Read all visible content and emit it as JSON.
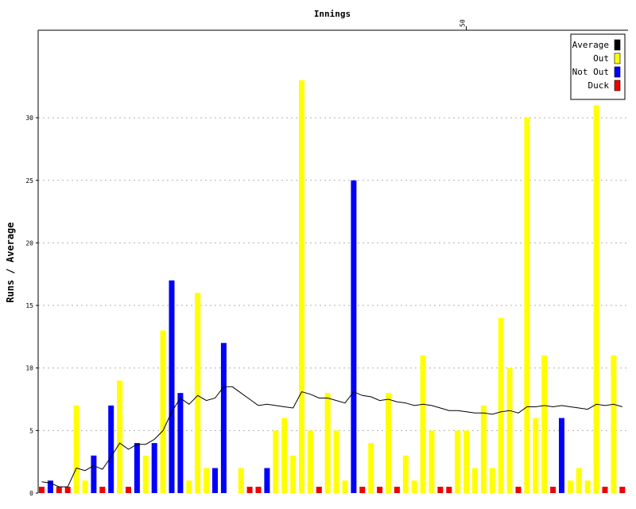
{
  "chart_data": {
    "type": "bar",
    "title": "Innings",
    "ylabel": "Runs / Average",
    "xlabel": "",
    "ylim": [
      0,
      37
    ],
    "yticks": [
      0,
      5,
      10,
      15,
      20,
      25,
      30
    ],
    "top_tick": "50",
    "grid": "horizontal-dotted",
    "legend_position": "top-right",
    "series": [
      {
        "name": "Average",
        "kind": "line",
        "color": "#000000"
      },
      {
        "name": "Out",
        "kind": "bar",
        "color": "#ffff00"
      },
      {
        "name": "Not Out",
        "kind": "bar",
        "color": "#0000ff"
      },
      {
        "name": "Duck",
        "kind": "bar",
        "color": "#ee0000"
      }
    ],
    "innings": [
      {
        "n": 1,
        "runs": 0,
        "type": "Duck"
      },
      {
        "n": 2,
        "runs": 1,
        "type": "Not Out"
      },
      {
        "n": 3,
        "runs": 0,
        "type": "Duck"
      },
      {
        "n": 4,
        "runs": 0,
        "type": "Duck"
      },
      {
        "n": 5,
        "runs": 7,
        "type": "Out"
      },
      {
        "n": 6,
        "runs": 1,
        "type": "Out"
      },
      {
        "n": 7,
        "runs": 3,
        "type": "Not Out"
      },
      {
        "n": 8,
        "runs": 0,
        "type": "Duck"
      },
      {
        "n": 9,
        "runs": 7,
        "type": "Not Out"
      },
      {
        "n": 10,
        "runs": 9,
        "type": "Out"
      },
      {
        "n": 11,
        "runs": 0,
        "type": "Duck"
      },
      {
        "n": 12,
        "runs": 4,
        "type": "Not Out"
      },
      {
        "n": 13,
        "runs": 3,
        "type": "Out"
      },
      {
        "n": 14,
        "runs": 4,
        "type": "Not Out"
      },
      {
        "n": 15,
        "runs": 13,
        "type": "Out"
      },
      {
        "n": 16,
        "runs": 17,
        "type": "Not Out"
      },
      {
        "n": 17,
        "runs": 8,
        "type": "Not Out"
      },
      {
        "n": 18,
        "runs": 1,
        "type": "Out"
      },
      {
        "n": 19,
        "runs": 16,
        "type": "Out"
      },
      {
        "n": 20,
        "runs": 2,
        "type": "Out"
      },
      {
        "n": 21,
        "runs": 2,
        "type": "Not Out"
      },
      {
        "n": 22,
        "runs": 12,
        "type": "Not Out"
      },
      {
        "n": 23,
        "runs": 0,
        "type": "None"
      },
      {
        "n": 24,
        "runs": 2,
        "type": "Out"
      },
      {
        "n": 25,
        "runs": 0,
        "type": "Duck"
      },
      {
        "n": 26,
        "runs": 0,
        "type": "Duck"
      },
      {
        "n": 27,
        "runs": 2,
        "type": "Not Out"
      },
      {
        "n": 28,
        "runs": 5,
        "type": "Out"
      },
      {
        "n": 29,
        "runs": 6,
        "type": "Out"
      },
      {
        "n": 30,
        "runs": 3,
        "type": "Out"
      },
      {
        "n": 31,
        "runs": 33,
        "type": "Out"
      },
      {
        "n": 32,
        "runs": 5,
        "type": "Out"
      },
      {
        "n": 33,
        "runs": 0,
        "type": "Duck"
      },
      {
        "n": 34,
        "runs": 8,
        "type": "Out"
      },
      {
        "n": 35,
        "runs": 5,
        "type": "Out"
      },
      {
        "n": 36,
        "runs": 1,
        "type": "Out"
      },
      {
        "n": 37,
        "runs": 25,
        "type": "Not Out"
      },
      {
        "n": 38,
        "runs": 0,
        "type": "Duck"
      },
      {
        "n": 39,
        "runs": 4,
        "type": "Out"
      },
      {
        "n": 40,
        "runs": 0,
        "type": "Duck"
      },
      {
        "n": 41,
        "runs": 8,
        "type": "Out"
      },
      {
        "n": 42,
        "runs": 0,
        "type": "Duck"
      },
      {
        "n": 43,
        "runs": 3,
        "type": "Out"
      },
      {
        "n": 44,
        "runs": 1,
        "type": "Out"
      },
      {
        "n": 45,
        "runs": 11,
        "type": "Out"
      },
      {
        "n": 46,
        "runs": 5,
        "type": "Out"
      },
      {
        "n": 47,
        "runs": 0,
        "type": "Duck"
      },
      {
        "n": 48,
        "runs": 0,
        "type": "Duck"
      },
      {
        "n": 49,
        "runs": 5,
        "type": "Out"
      },
      {
        "n": 50,
        "runs": 5,
        "type": "Out"
      },
      {
        "n": 51,
        "runs": 2,
        "type": "Out"
      },
      {
        "n": 52,
        "runs": 7,
        "type": "Out"
      },
      {
        "n": 53,
        "runs": 2,
        "type": "Out"
      },
      {
        "n": 54,
        "runs": 14,
        "type": "Out"
      },
      {
        "n": 55,
        "runs": 10,
        "type": "Out"
      },
      {
        "n": 56,
        "runs": 0,
        "type": "Duck"
      },
      {
        "n": 57,
        "runs": 30,
        "type": "Out"
      },
      {
        "n": 58,
        "runs": 6,
        "type": "Out"
      },
      {
        "n": 59,
        "runs": 11,
        "type": "Out"
      },
      {
        "n": 60,
        "runs": 0,
        "type": "Duck"
      },
      {
        "n": 61,
        "runs": 6,
        "type": "Not Out"
      },
      {
        "n": 62,
        "runs": 1,
        "type": "Out"
      },
      {
        "n": 63,
        "runs": 2,
        "type": "Out"
      },
      {
        "n": 64,
        "runs": 1,
        "type": "Out"
      },
      {
        "n": 65,
        "runs": 31,
        "type": "Out"
      },
      {
        "n": 66,
        "runs": 0,
        "type": "Duck"
      },
      {
        "n": 67,
        "runs": 11,
        "type": "Out"
      },
      {
        "n": 68,
        "runs": 0,
        "type": "Duck"
      }
    ],
    "average": [
      0.9,
      0.8,
      0.5,
      0.5,
      2.0,
      1.8,
      2.2,
      1.9,
      2.9,
      4.0,
      3.5,
      3.9,
      3.9,
      4.3,
      5.0,
      6.5,
      7.6,
      7.1,
      7.8,
      7.4,
      7.6,
      8.5,
      8.5,
      8.0,
      7.5,
      7.0,
      7.1,
      7.0,
      6.9,
      6.8,
      8.1,
      7.9,
      7.6,
      7.6,
      7.4,
      7.2,
      8.1,
      7.8,
      7.7,
      7.4,
      7.5,
      7.3,
      7.2,
      7.0,
      7.1,
      7.0,
      6.8,
      6.6,
      6.6,
      6.5,
      6.4,
      6.4,
      6.3,
      6.5,
      6.6,
      6.4,
      6.9,
      6.9,
      7.0,
      6.9,
      7.0,
      6.9,
      6.8,
      6.7,
      7.1,
      7.0,
      7.1,
      6.9
    ]
  }
}
